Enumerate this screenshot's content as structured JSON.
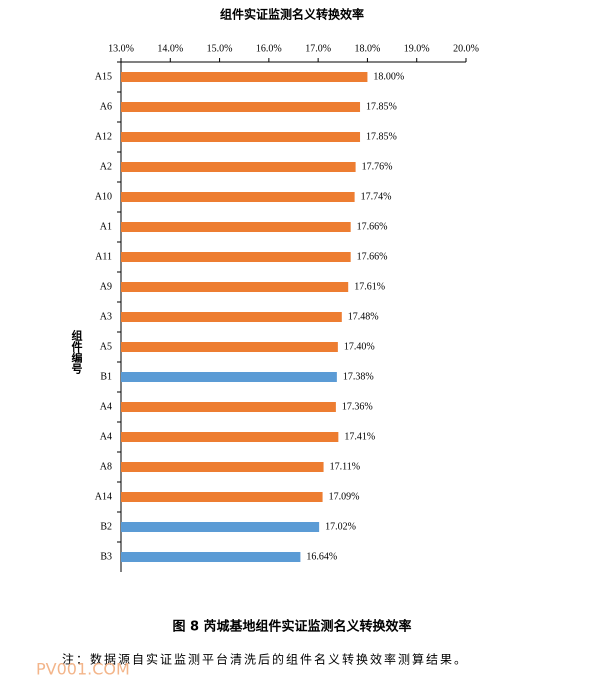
{
  "chart_data": {
    "type": "hbar",
    "title": "组件实证监测名义转换效率",
    "y_label": "组件编号",
    "caption": "图 8   芮城基地组件实证监测名义转换效率",
    "note": "注：数据源自实证监测平台清洗后的组件名义转换效率测算结果。",
    "watermark": "PV001.COM",
    "categories": [
      "A15",
      "A6",
      "A12",
      "A2",
      "A10",
      "A1",
      "A11",
      "A9",
      "A3",
      "A5",
      "B1",
      "A4",
      "A4",
      "A8",
      "A14",
      "B2",
      "B3"
    ],
    "values": [
      18.0,
      17.85,
      17.85,
      17.76,
      17.74,
      17.66,
      17.66,
      17.61,
      17.48,
      17.4,
      17.38,
      17.36,
      17.41,
      17.11,
      17.09,
      17.02,
      16.64
    ],
    "value_labels": [
      "18.00%",
      "17.85%",
      "17.85%",
      "17.76%",
      "17.74%",
      "17.66%",
      "17.66%",
      "17.61%",
      "17.48%",
      "17.40%",
      "17.38%",
      "17.36%",
      "17.41%",
      "17.11%",
      "17.09%",
      "17.02%",
      "16.64%"
    ],
    "colors": [
      "#ed7d31",
      "#ed7d31",
      "#ed7d31",
      "#ed7d31",
      "#ed7d31",
      "#ed7d31",
      "#ed7d31",
      "#ed7d31",
      "#ed7d31",
      "#ed7d31",
      "#5b9bd5",
      "#ed7d31",
      "#ed7d31",
      "#ed7d31",
      "#ed7d31",
      "#5b9bd5",
      "#5b9bd5"
    ],
    "xlim": [
      13,
      20
    ],
    "xticks": [
      {
        "value": 13,
        "label": "13.0%"
      },
      {
        "value": 14,
        "label": "14.0%"
      },
      {
        "value": 15,
        "label": "15.0%"
      },
      {
        "value": 16,
        "label": "16.0%"
      },
      {
        "value": 17,
        "label": "17.0%"
      },
      {
        "value": 18,
        "label": "18.0%"
      },
      {
        "value": 19,
        "label": "19.0%"
      },
      {
        "value": 20,
        "label": "20.0%"
      }
    ]
  }
}
